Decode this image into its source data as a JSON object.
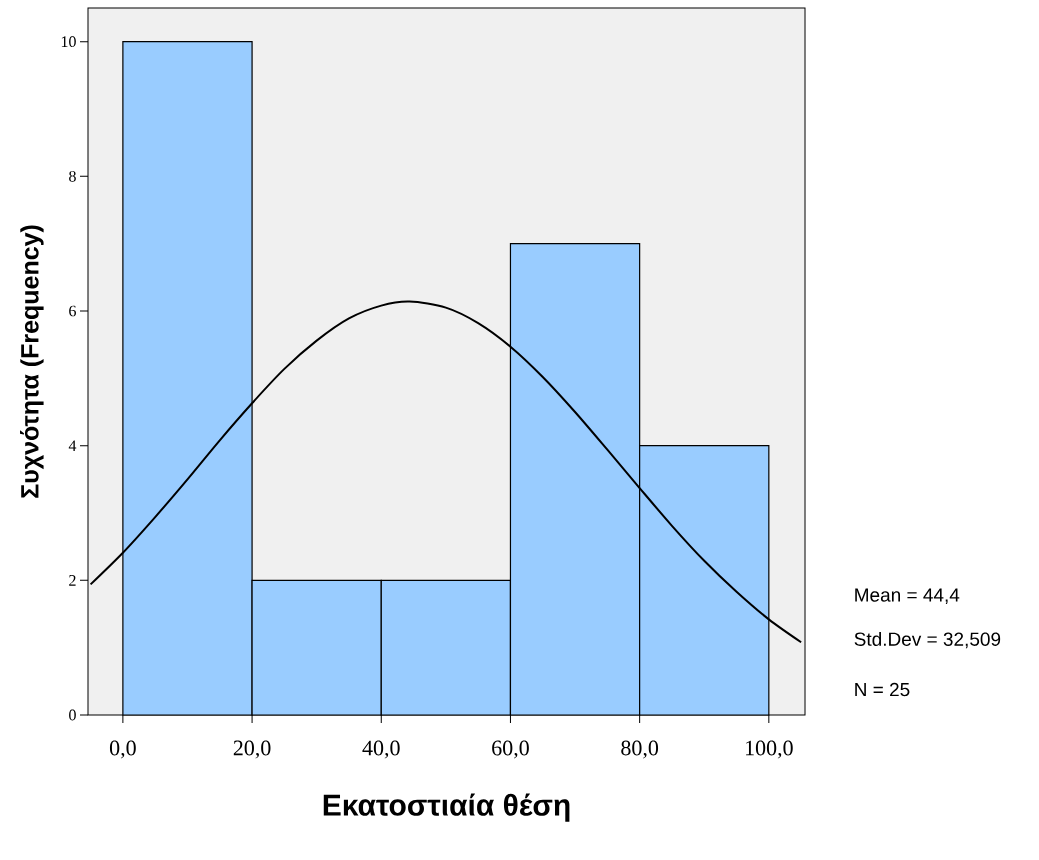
{
  "chart_data": {
    "type": "histogram",
    "xlabel": "Εκατοστιαία θέση",
    "ylabel": "Συχνότητα (Frequency)",
    "bins": [
      0,
      20,
      40,
      60,
      80,
      100
    ],
    "values": [
      10,
      2,
      2,
      7,
      4
    ],
    "color": "#99ccff",
    "series": [
      {
        "type": "line",
        "color": "#000000",
        "x": [
          -5,
          0,
          5,
          10,
          15,
          20,
          25,
          30,
          35,
          40,
          44.4,
          50,
          55,
          60,
          65,
          70,
          75,
          80,
          85,
          90,
          95,
          100,
          105
        ],
        "values": [
          1.94,
          2.41,
          2.94,
          3.5,
          4.08,
          4.63,
          5.14,
          5.56,
          5.89,
          6.08,
          6.14,
          6.05,
          5.82,
          5.47,
          5.02,
          4.5,
          3.94,
          3.37,
          2.81,
          2.29,
          1.83,
          1.42,
          1.08
        ]
      }
    ],
    "xlim": [
      -5.4,
      105.6
    ],
    "ylim": [
      0,
      10.5
    ],
    "xticks": [
      {
        "value": 0,
        "label": "0,0"
      },
      {
        "value": 20,
        "label": "20,0"
      },
      {
        "value": 40,
        "label": "40,0"
      },
      {
        "value": 60,
        "label": "60,0"
      },
      {
        "value": 80,
        "label": "80,0"
      },
      {
        "value": 100,
        "label": "100,0"
      }
    ],
    "yticks": [
      0,
      2,
      4,
      6,
      8,
      10
    ],
    "annotations": [
      "Mean = 44,4",
      "Std.Dev = 32,509",
      "N = 25"
    ]
  }
}
